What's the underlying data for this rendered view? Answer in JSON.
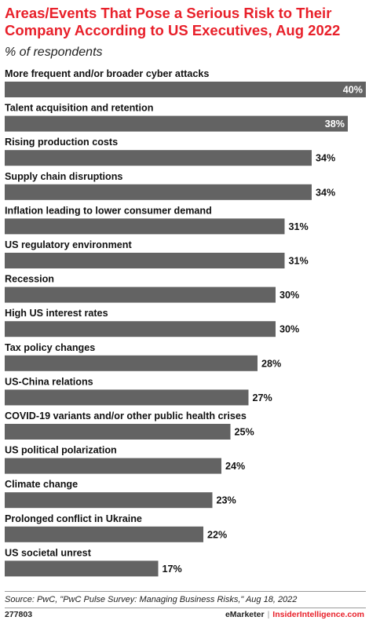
{
  "header": {
    "title": "Areas/Events That Pose a Serious Risk to Their Company According to US Executives, Aug 2022",
    "subtitle": "% of respondents"
  },
  "colors": {
    "title": "#e8202a",
    "bar": "#636363",
    "value_inside": "#ffffff",
    "value_outside": "#111111"
  },
  "chart_data": {
    "type": "bar",
    "orientation": "horizontal",
    "title": "Areas/Events That Pose a Serious Risk to Their Company According to US Executives, Aug 2022",
    "subtitle": "% of respondents",
    "xlabel": "",
    "ylabel": "",
    "categories": [
      "More frequent and/or broader cyber attacks",
      "Talent acquisition and retention",
      "Rising production costs",
      "Supply chain disruptions",
      "Inflation leading to lower consumer demand",
      "US regulatory environment",
      "Recession",
      "High US interest rates",
      "Tax policy changes",
      "US-China relations",
      "COVID-19 variants and/or other public health crises",
      "US political polarization",
      "Climate change",
      "Prolonged conflict in Ukraine",
      "US societal unrest"
    ],
    "values": [
      40,
      38,
      34,
      34,
      31,
      31,
      30,
      30,
      28,
      27,
      25,
      24,
      23,
      22,
      17
    ],
    "value_labels": [
      "40%",
      "38%",
      "34%",
      "34%",
      "31%",
      "31%",
      "30%",
      "30%",
      "28%",
      "27%",
      "25%",
      "24%",
      "23%",
      "22%",
      "17%"
    ],
    "xlim": [
      0,
      40
    ],
    "grid": false,
    "legend": "none"
  },
  "footer": {
    "source": "Source: PwC, \"PwC Pulse Survey: Managing Business Risks,\" Aug 18, 2022",
    "chart_id": "277803",
    "brand_left": "eMarketer",
    "brand_sep": "|",
    "brand_right": "InsiderIntelligence.com"
  }
}
